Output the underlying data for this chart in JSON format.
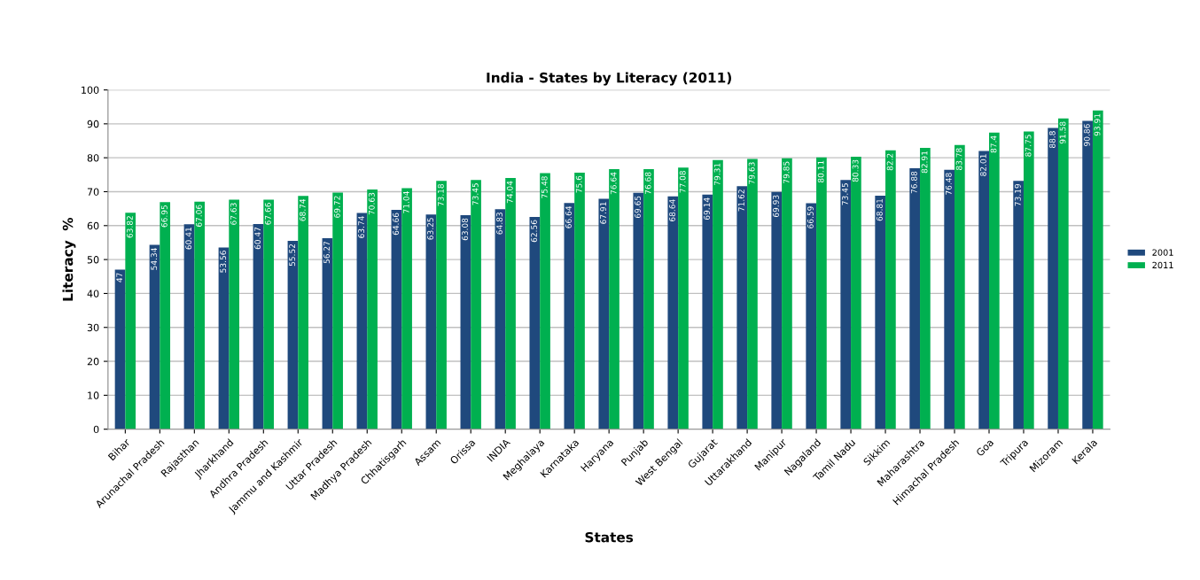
{
  "chart_data": {
    "type": "bar",
    "title": "India - States by Literacy (2011)",
    "xlabel": "States",
    "ylabel": "Literacy  %",
    "categories": [
      "Bihar",
      "Arunachal Pradesh",
      "Rajasthan",
      "Jharkhand",
      "Andhra Pradesh",
      "Jammu and Kashmir",
      "Uttar Pradesh",
      "Madhya Pradesh",
      "Chhatisgarh",
      "Assam",
      "Orissa",
      "INDIA",
      "Meghalaya",
      "Karnataka",
      "Haryana",
      "Punjab",
      "West Bengal",
      "Gujarat",
      "Uttarakhand",
      "Manipur",
      "Nagaland",
      "Tamil Nadu",
      "Sikkim",
      "Maharashtra",
      "Himachal Pradesh",
      "Goa",
      "Tripura",
      "Mizoram",
      "Kerala"
    ],
    "series": [
      {
        "name": "2001",
        "color": "#1f497d",
        "values": [
          47,
          54.34,
          60.41,
          53.56,
          60.47,
          55.52,
          56.27,
          63.74,
          64.66,
          63.25,
          63.08,
          64.83,
          62.56,
          66.64,
          67.91,
          69.65,
          68.64,
          69.14,
          71.62,
          69.93,
          66.59,
          73.45,
          68.81,
          76.88,
          76.48,
          82.01,
          73.19,
          88.8,
          90.86
        ]
      },
      {
        "name": "2011",
        "color": "#00b050",
        "values": [
          63.82,
          66.95,
          67.06,
          67.63,
          67.66,
          68.74,
          69.72,
          70.63,
          71.04,
          73.18,
          73.45,
          74.04,
          75.48,
          75.6,
          76.64,
          76.68,
          77.08,
          79.31,
          79.63,
          79.85,
          80.11,
          80.33,
          82.2,
          82.91,
          83.78,
          87.4,
          87.75,
          91.58,
          93.91
        ]
      }
    ],
    "ylim": [
      0,
      100
    ],
    "yticks": [
      0,
      10,
      20,
      30,
      40,
      50,
      60,
      70,
      80,
      90,
      100
    ],
    "grid": "y",
    "legend": "right",
    "data_labels": true
  }
}
